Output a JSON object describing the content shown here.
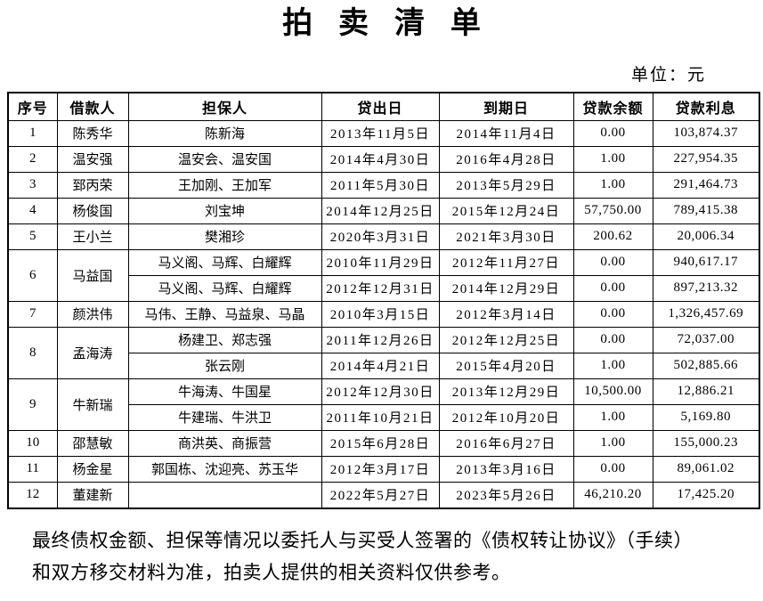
{
  "page": {
    "title": "拍卖清单",
    "unit_label": "单位：元"
  },
  "table": {
    "headers": [
      "序号",
      "借款人",
      "担保人",
      "贷出日",
      "到期日",
      "贷款余额",
      "贷款利息"
    ],
    "rows": [
      {
        "no": "1",
        "borrower": "陈秀华",
        "entries": [
          {
            "guarantor": "陈新海",
            "loan_date": "2013年11月5日",
            "due_date": "2014年11月4日",
            "balance": "0.00",
            "interest": "103,874.37"
          }
        ]
      },
      {
        "no": "2",
        "borrower": "温安强",
        "entries": [
          {
            "guarantor": "温安会、温安国",
            "loan_date": "2014年4月30日",
            "due_date": "2016年4月28日",
            "balance": "1.00",
            "interest": "227,954.35"
          }
        ]
      },
      {
        "no": "3",
        "borrower": "郅丙荣",
        "entries": [
          {
            "guarantor": "王加刚、王加军",
            "loan_date": "2011年5月30日",
            "due_date": "2013年5月29日",
            "balance": "1.00",
            "interest": "291,464.73"
          }
        ]
      },
      {
        "no": "4",
        "borrower": "杨俊国",
        "entries": [
          {
            "guarantor": "刘宝坤",
            "loan_date": "2014年12月25日",
            "due_date": "2015年12月24日",
            "balance": "57,750.00",
            "interest": "789,415.38"
          }
        ]
      },
      {
        "no": "5",
        "borrower": "王小兰",
        "entries": [
          {
            "guarantor": "樊湘珍",
            "loan_date": "2020年3月31日",
            "due_date": "2021年3月30日",
            "balance": "200.62",
            "interest": "20,006.34"
          }
        ]
      },
      {
        "no": "6",
        "borrower": "马益国",
        "entries": [
          {
            "guarantor": "马义阁、马辉、白耀辉",
            "loan_date": "2010年11月29日",
            "due_date": "2012年11月27日",
            "balance": "0.00",
            "interest": "940,617.17"
          },
          {
            "guarantor": "马义阁、马辉、白耀辉",
            "loan_date": "2012年12月31日",
            "due_date": "2014年12月29日",
            "balance": "0.00",
            "interest": "897,213.32"
          }
        ]
      },
      {
        "no": "7",
        "borrower": "颜洪伟",
        "entries": [
          {
            "guarantor": "马伟、王静、马益泉、马晶",
            "loan_date": "2010年3月15日",
            "due_date": "2012年3月14日",
            "balance": "0.00",
            "interest": "1,326,457.69"
          }
        ]
      },
      {
        "no": "8",
        "borrower": "孟海涛",
        "entries": [
          {
            "guarantor": "杨建卫、郑志强",
            "loan_date": "2011年12月26日",
            "due_date": "2012年12月25日",
            "balance": "0.00",
            "interest": "72,037.00"
          },
          {
            "guarantor": "张云刚",
            "loan_date": "2014年4月21日",
            "due_date": "2015年4月20日",
            "balance": "1.00",
            "interest": "502,885.66"
          }
        ]
      },
      {
        "no": "9",
        "borrower": "牛新瑞",
        "entries": [
          {
            "guarantor": "牛海涛、牛国星",
            "loan_date": "2012年12月30日",
            "due_date": "2013年12月29日",
            "balance": "10,500.00",
            "interest": "12,886.21"
          },
          {
            "guarantor": "牛建瑞、牛洪卫",
            "loan_date": "2011年10月21日",
            "due_date": "2012年10月20日",
            "balance": "1.00",
            "interest": "5,169.80"
          }
        ]
      },
      {
        "no": "10",
        "borrower": "邵慧敏",
        "entries": [
          {
            "guarantor": "商洪英、商振营",
            "loan_date": "2015年6月28日",
            "due_date": "2016年6月27日",
            "balance": "1.00",
            "interest": "155,000.23"
          }
        ]
      },
      {
        "no": "11",
        "borrower": "杨金星",
        "entries": [
          {
            "guarantor": "郭国栋、沈迎亮、苏玉华",
            "loan_date": "2012年3月17日",
            "due_date": "2013年3月16日",
            "balance": "0.00",
            "interest": "89,061.02"
          }
        ]
      },
      {
        "no": "12",
        "borrower": "董建新",
        "entries": [
          {
            "guarantor": "",
            "loan_date": "2022年5月27日",
            "due_date": "2023年5月26日",
            "balance": "46,210.20",
            "interest": "17,425.20"
          }
        ]
      }
    ]
  },
  "footer": {
    "note_lines": [
      "最终债权金额、担保等情况以委托人与买受人签署的《债权转让协议》（手续）",
      "和双方移交材料为准，拍卖人提供的相关资料仅供参考。"
    ]
  }
}
